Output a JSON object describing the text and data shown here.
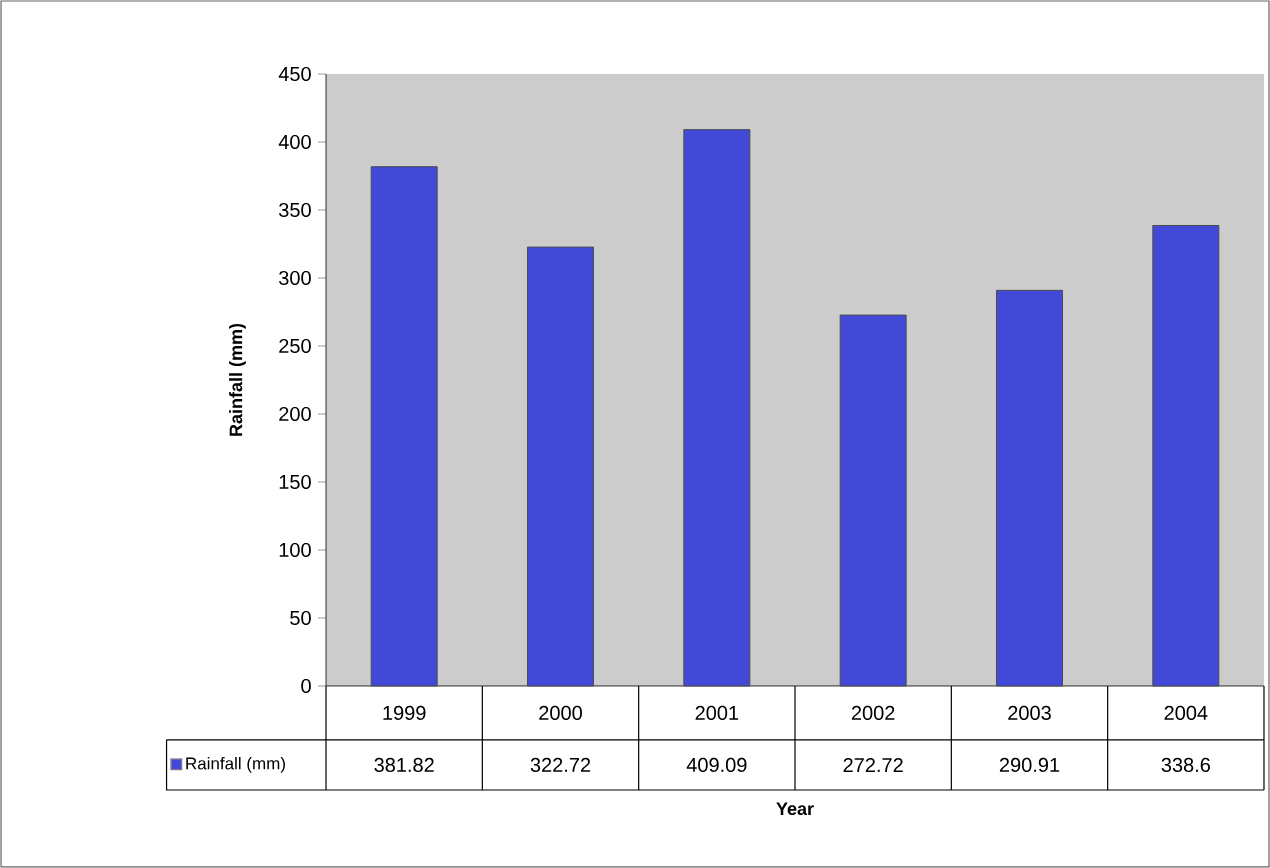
{
  "chart_data": {
    "type": "bar",
    "xlabel": "Year",
    "ylabel": "Rainfall (mm)",
    "categories": [
      "1999",
      "2000",
      "2001",
      "2002",
      "2003",
      "2004"
    ],
    "series": [
      {
        "name": "Rainfall (mm)",
        "color": "#4149d6",
        "values": [
          381.82,
          322.72,
          409.09,
          272.72,
          290.91,
          338.6
        ]
      }
    ],
    "ylim": [
      0,
      450
    ],
    "yticks": [
      0,
      50,
      100,
      150,
      200,
      250,
      300,
      350,
      400,
      450
    ],
    "data_labels": true,
    "legend": "bottom left",
    "grid": false
  }
}
